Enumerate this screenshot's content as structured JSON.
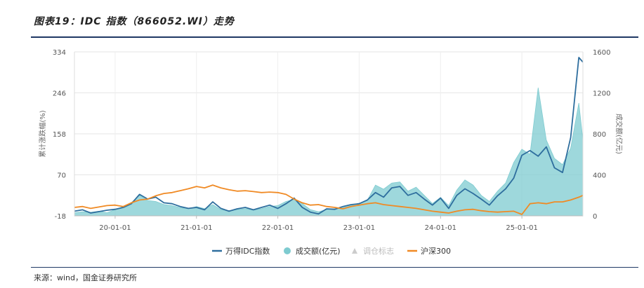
{
  "header": {
    "title": "图表19：IDC 指数（866052.WI）走势"
  },
  "footer": {
    "source": "来源：wind，国金证券研究所"
  },
  "chart_data": {
    "type": "line",
    "xlabel": "",
    "x_tick_labels": [
      "20-01-01",
      "21-01-01",
      "22-01-01",
      "23-01-01",
      "24-01-01",
      "25-01-01"
    ],
    "x_tick_positions": [
      2020.0,
      2021.0,
      2022.0,
      2023.0,
      2024.0,
      2025.0
    ],
    "x_range": [
      2019.5,
      2025.75
    ],
    "y_left": {
      "label": "累计涨跌幅(%)",
      "ticks": [
        -18,
        70,
        158,
        246,
        334
      ],
      "range": [
        -18,
        334
      ]
    },
    "y_right": {
      "label": "成交额(亿元)",
      "ticks": [
        0,
        400,
        800,
        1200,
        1600
      ],
      "range": [
        0,
        1600
      ]
    },
    "grid": true,
    "legend_position": "bottom",
    "legend": [
      {
        "name": "万得IDC指数",
        "marker": "line",
        "color": "#2e6e9e"
      },
      {
        "name": "成交额(亿元)",
        "marker": "circle",
        "color": "#7ecbd0"
      },
      {
        "name": "调仓标志",
        "marker": "triangle",
        "color": "#cccccc",
        "muted": true
      },
      {
        "name": "沪深300",
        "marker": "line",
        "color": "#f08a24"
      }
    ],
    "series": [
      {
        "name": "万得IDC指数",
        "axis": "left",
        "kind": "line",
        "color": "#2e6e9e",
        "x": [
          2019.5,
          2019.6,
          2019.7,
          2019.8,
          2019.9,
          2020.0,
          2020.1,
          2020.2,
          2020.3,
          2020.4,
          2020.5,
          2020.6,
          2020.7,
          2020.8,
          2020.9,
          2021.0,
          2021.1,
          2021.2,
          2021.3,
          2021.4,
          2021.5,
          2021.6,
          2021.7,
          2021.8,
          2021.9,
          2022.0,
          2022.1,
          2022.2,
          2022.3,
          2022.4,
          2022.5,
          2022.6,
          2022.7,
          2022.8,
          2022.9,
          2023.0,
          2023.1,
          2023.2,
          2023.3,
          2023.4,
          2023.5,
          2023.6,
          2023.7,
          2023.8,
          2023.9,
          2024.0,
          2024.1,
          2024.2,
          2024.3,
          2024.4,
          2024.5,
          2024.6,
          2024.7,
          2024.8,
          2024.9,
          2025.0,
          2025.1,
          2025.2,
          2025.3,
          2025.4,
          2025.5,
          2025.6,
          2025.7,
          2025.75
        ],
        "y": [
          -8,
          -5,
          -12,
          -9,
          -6,
          -4,
          0,
          8,
          28,
          18,
          22,
          10,
          8,
          2,
          -2,
          0,
          -5,
          12,
          -2,
          -8,
          -3,
          0,
          -5,
          0,
          5,
          -2,
          8,
          20,
          0,
          -10,
          -14,
          -3,
          -4,
          2,
          6,
          8,
          16,
          32,
          22,
          42,
          45,
          26,
          32,
          18,
          5,
          20,
          -2,
          26,
          40,
          30,
          18,
          5,
          25,
          40,
          63,
          112,
          122,
          110,
          130,
          85,
          75,
          150,
          322,
          312
        ]
      },
      {
        "name": "成交额(亿元)",
        "axis": "right",
        "kind": "area",
        "color": "#7ecbd0",
        "x": [
          2019.5,
          2019.6,
          2019.7,
          2019.8,
          2019.9,
          2020.0,
          2020.1,
          2020.2,
          2020.3,
          2020.4,
          2020.5,
          2020.6,
          2020.7,
          2020.8,
          2020.9,
          2021.0,
          2021.1,
          2021.2,
          2021.3,
          2021.4,
          2021.5,
          2021.6,
          2021.7,
          2021.8,
          2021.9,
          2022.0,
          2022.1,
          2022.2,
          2022.3,
          2022.4,
          2022.5,
          2022.6,
          2022.7,
          2022.8,
          2022.9,
          2023.0,
          2023.1,
          2023.2,
          2023.3,
          2023.4,
          2023.5,
          2023.6,
          2023.7,
          2023.8,
          2023.9,
          2024.0,
          2024.1,
          2024.2,
          2024.3,
          2024.4,
          2024.5,
          2024.6,
          2024.7,
          2024.8,
          2024.9,
          2025.0,
          2025.1,
          2025.2,
          2025.3,
          2025.4,
          2025.5,
          2025.6,
          2025.7,
          2025.75
        ],
        "y": [
          30,
          40,
          35,
          45,
          30,
          60,
          90,
          130,
          200,
          150,
          140,
          110,
          100,
          80,
          70,
          90,
          70,
          110,
          60,
          50,
          60,
          70,
          55,
          70,
          90,
          100,
          140,
          160,
          120,
          60,
          40,
          60,
          70,
          80,
          100,
          120,
          150,
          300,
          260,
          320,
          330,
          240,
          280,
          200,
          120,
          180,
          100,
          250,
          350,
          300,
          200,
          140,
          240,
          320,
          520,
          650,
          600,
          1250,
          740,
          560,
          500,
          660,
          1100,
          740
        ]
      },
      {
        "name": "沪深300",
        "axis": "left",
        "kind": "line",
        "color": "#f08a24",
        "x": [
          2019.5,
          2019.6,
          2019.7,
          2019.8,
          2019.9,
          2020.0,
          2020.1,
          2020.2,
          2020.3,
          2020.4,
          2020.5,
          2020.6,
          2020.7,
          2020.8,
          2020.9,
          2021.0,
          2021.1,
          2021.2,
          2021.3,
          2021.4,
          2021.5,
          2021.6,
          2021.7,
          2021.8,
          2021.9,
          2022.0,
          2022.1,
          2022.2,
          2022.3,
          2022.4,
          2022.5,
          2022.6,
          2022.7,
          2022.8,
          2022.9,
          2023.0,
          2023.1,
          2023.2,
          2023.3,
          2023.4,
          2023.5,
          2023.6,
          2023.7,
          2023.8,
          2023.9,
          2024.0,
          2024.1,
          2024.2,
          2024.3,
          2024.4,
          2024.5,
          2024.6,
          2024.7,
          2024.8,
          2024.9,
          2025.0,
          2025.1,
          2025.2,
          2025.3,
          2025.4,
          2025.5,
          2025.6,
          2025.7,
          2025.75
        ],
        "y": [
          0,
          2,
          -2,
          1,
          4,
          5,
          2,
          10,
          16,
          18,
          25,
          30,
          32,
          36,
          40,
          45,
          42,
          48,
          42,
          38,
          35,
          36,
          34,
          32,
          33,
          32,
          28,
          18,
          10,
          5,
          6,
          2,
          0,
          -3,
          2,
          5,
          8,
          10,
          6,
          4,
          2,
          0,
          -2,
          -5,
          -8,
          -10,
          -12,
          -8,
          -5,
          -4,
          -7,
          -9,
          -10,
          -9,
          -8,
          -15,
          8,
          10,
          8,
          12,
          12,
          16,
          22,
          26
        ]
      }
    ]
  }
}
